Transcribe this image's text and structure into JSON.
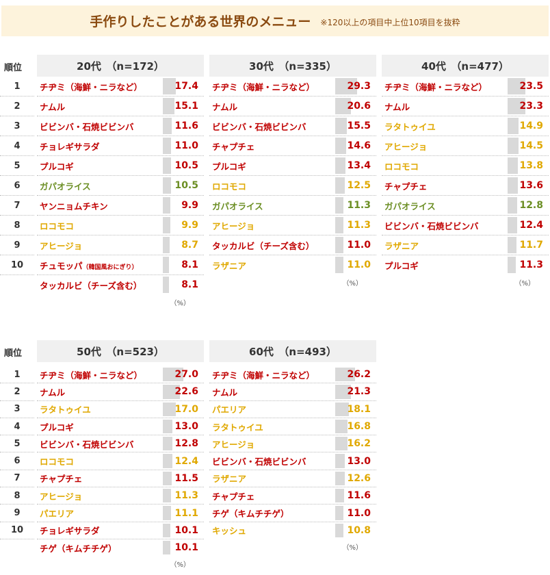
{
  "title": "手作りしたことがある世界のメニュー",
  "subtitle": "※120以上の項目中上位10項目を抜粋",
  "rank_header": "順位",
  "unit": "（%）",
  "colors": {
    "korean": "#c00000",
    "thai": "#6b8e23",
    "western": "#e0a800",
    "bar": "#d9d9d9"
  },
  "ranks": [
    "1",
    "2",
    "3",
    "4",
    "5",
    "6",
    "7",
    "8",
    "9",
    "10",
    ""
  ],
  "groups": [
    {
      "label": "20代　（n=172）",
      "items": [
        {
          "name": "チヂミ（海鮮・ニラなど）",
          "value": "17.4",
          "cat": "korean"
        },
        {
          "name": "ナムル",
          "value": "15.1",
          "cat": "korean"
        },
        {
          "name": "ビビンバ・石焼ビビンバ",
          "value": "11.6",
          "cat": "korean"
        },
        {
          "name": "チョレギサラダ",
          "value": "11.0",
          "cat": "korean"
        },
        {
          "name": "プルコギ",
          "value": "10.5",
          "cat": "korean"
        },
        {
          "name": "ガパオライス",
          "value": "10.5",
          "cat": "thai"
        },
        {
          "name": "ヤンニョムチキン",
          "value": "9.9",
          "cat": "korean"
        },
        {
          "name": "ロコモコ",
          "value": "9.9",
          "cat": "western"
        },
        {
          "name": "アヒージョ",
          "value": "8.7",
          "cat": "western"
        },
        {
          "name": "チュモッパ",
          "note": "（韓国風おにぎり）",
          "value": "8.1",
          "cat": "korean"
        },
        {
          "name": "タッカルビ（チーズ含む）",
          "value": "8.1",
          "cat": "korean"
        }
      ]
    },
    {
      "label": "30代　（n=335）",
      "items": [
        {
          "name": "チヂミ（海鮮・ニラなど）",
          "value": "29.3",
          "cat": "korean"
        },
        {
          "name": "ナムル",
          "value": "20.6",
          "cat": "korean"
        },
        {
          "name": "ビビンバ・石焼ビビンバ",
          "value": "15.5",
          "cat": "korean"
        },
        {
          "name": "チャプチェ",
          "value": "14.6",
          "cat": "korean"
        },
        {
          "name": "プルコギ",
          "value": "13.4",
          "cat": "korean"
        },
        {
          "name": "ロコモコ",
          "value": "12.5",
          "cat": "western"
        },
        {
          "name": "ガパオライス",
          "value": "11.3",
          "cat": "thai"
        },
        {
          "name": "アヒージョ",
          "value": "11.3",
          "cat": "western"
        },
        {
          "name": "タッカルビ（チーズ含む）",
          "value": "11.0",
          "cat": "korean"
        },
        {
          "name": "ラザニア",
          "value": "11.0",
          "cat": "western"
        }
      ]
    },
    {
      "label": "40代　（n=477）",
      "items": [
        {
          "name": "チヂミ（海鮮・ニラなど）",
          "value": "23.5",
          "cat": "korean"
        },
        {
          "name": "ナムル",
          "value": "23.3",
          "cat": "korean"
        },
        {
          "name": "ラタトゥイユ",
          "value": "14.9",
          "cat": "western"
        },
        {
          "name": "アヒージョ",
          "value": "14.5",
          "cat": "western"
        },
        {
          "name": "ロコモコ",
          "value": "13.8",
          "cat": "western"
        },
        {
          "name": "チャプチェ",
          "value": "13.6",
          "cat": "korean"
        },
        {
          "name": "ガパオライス",
          "value": "12.8",
          "cat": "thai"
        },
        {
          "name": "ビビンバ・石焼ビビンバ",
          "value": "12.4",
          "cat": "korean"
        },
        {
          "name": "ラザニア",
          "value": "11.7",
          "cat": "western"
        },
        {
          "name": "プルコギ",
          "value": "11.3",
          "cat": "korean"
        }
      ]
    },
    {
      "label": "50代　（n=523）",
      "items": [
        {
          "name": "チヂミ（海鮮・ニラなど）",
          "value": "27.0",
          "cat": "korean"
        },
        {
          "name": "ナムル",
          "value": "22.6",
          "cat": "korean"
        },
        {
          "name": "ラタトゥイユ",
          "value": "17.0",
          "cat": "western"
        },
        {
          "name": "プルコギ",
          "value": "13.0",
          "cat": "korean"
        },
        {
          "name": "ビビンバ・石焼ビビンバ",
          "value": "12.8",
          "cat": "korean"
        },
        {
          "name": "ロコモコ",
          "value": "12.4",
          "cat": "western"
        },
        {
          "name": "チャプチェ",
          "value": "11.5",
          "cat": "korean"
        },
        {
          "name": "アヒージョ",
          "value": "11.3",
          "cat": "western"
        },
        {
          "name": "パエリア",
          "value": "11.1",
          "cat": "western"
        },
        {
          "name": "チョレギサラダ",
          "value": "10.1",
          "cat": "korean"
        },
        {
          "name": "チゲ（キムチチゲ）",
          "value": "10.1",
          "cat": "korean"
        }
      ]
    },
    {
      "label": "60代　（n=493）",
      "items": [
        {
          "name": "チヂミ（海鮮・ニラなど）",
          "value": "26.2",
          "cat": "korean"
        },
        {
          "name": "ナムル",
          "value": "21.3",
          "cat": "korean"
        },
        {
          "name": "パエリア",
          "value": "18.1",
          "cat": "western"
        },
        {
          "name": "ラタトゥイユ",
          "value": "16.8",
          "cat": "western"
        },
        {
          "name": "アヒージョ",
          "value": "16.2",
          "cat": "western"
        },
        {
          "name": "ビビンバ・石焼ビビンバ",
          "value": "13.0",
          "cat": "korean"
        },
        {
          "name": "ラザニア",
          "value": "12.6",
          "cat": "western"
        },
        {
          "name": "チャプチェ",
          "value": "11.6",
          "cat": "korean"
        },
        {
          "name": "チゲ（キムチチゲ）",
          "value": "11.0",
          "cat": "korean"
        },
        {
          "name": "キッシュ",
          "value": "10.8",
          "cat": "western"
        }
      ]
    }
  ]
}
